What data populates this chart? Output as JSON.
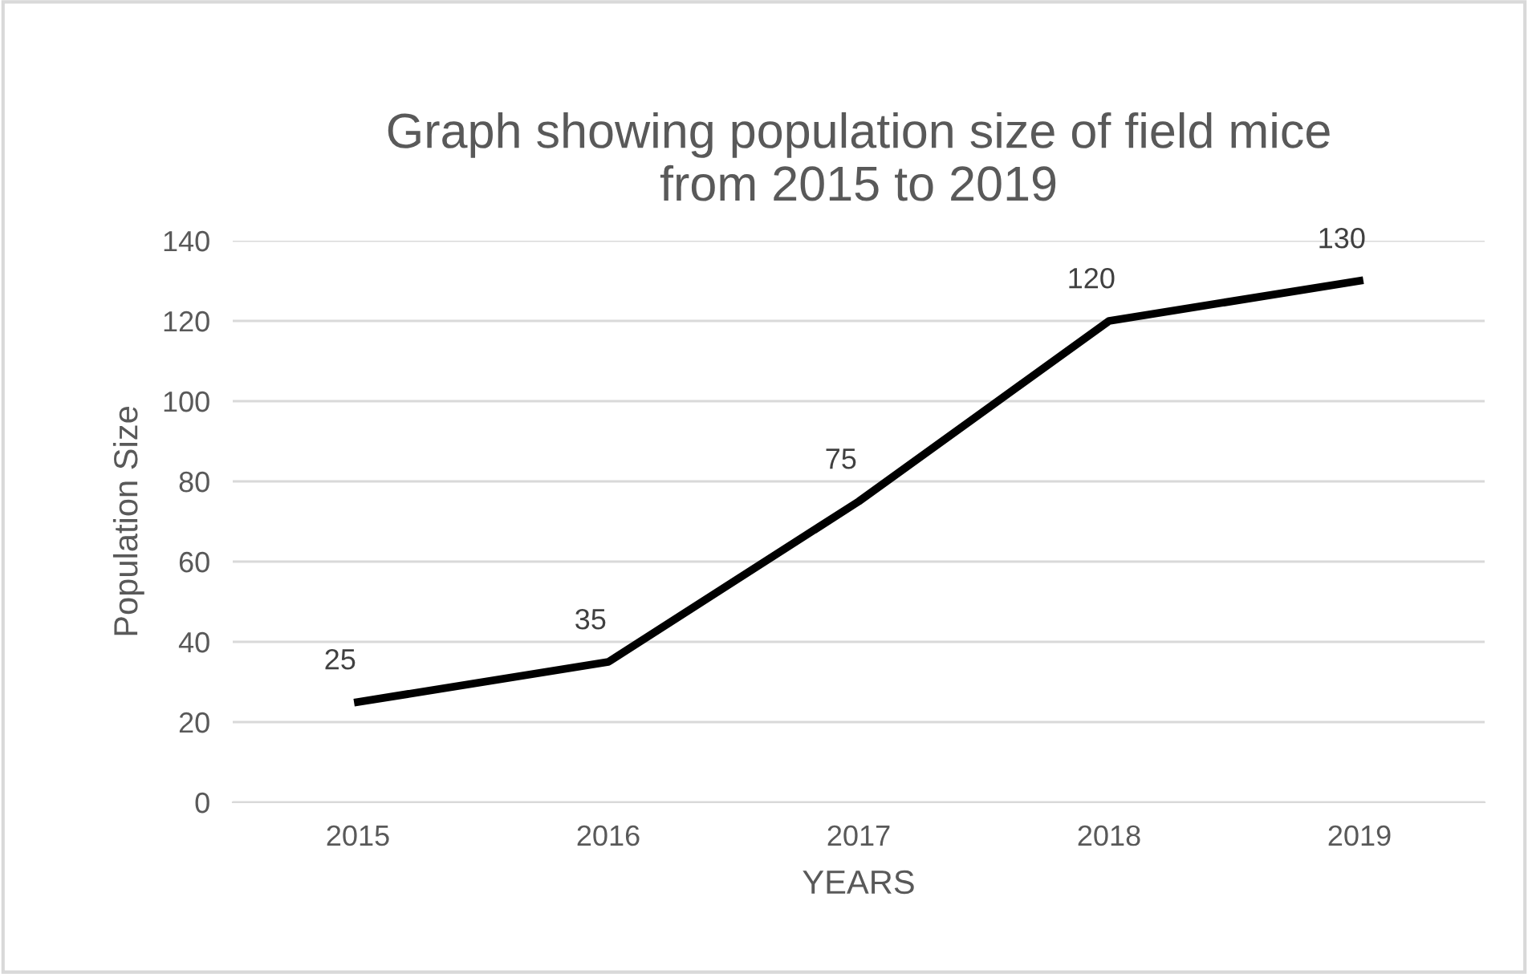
{
  "chart_data": {
    "type": "line",
    "title": "Graph showing population size of field mice\nfrom 2015 to 2019",
    "xlabel": "YEARS",
    "ylabel": "Population Size",
    "categories": [
      "2015",
      "2016",
      "2017",
      "2018",
      "2019"
    ],
    "series": [
      {
        "color": "#000000",
        "values": [
          25,
          35,
          75,
          120,
          130
        ]
      }
    ],
    "ylim": [
      0,
      140
    ],
    "yticks": [
      0,
      20,
      40,
      60,
      80,
      100,
      120,
      140
    ],
    "grid": "y",
    "data_labels": true,
    "marker": "none",
    "line_style": "solid",
    "legend": false
  }
}
